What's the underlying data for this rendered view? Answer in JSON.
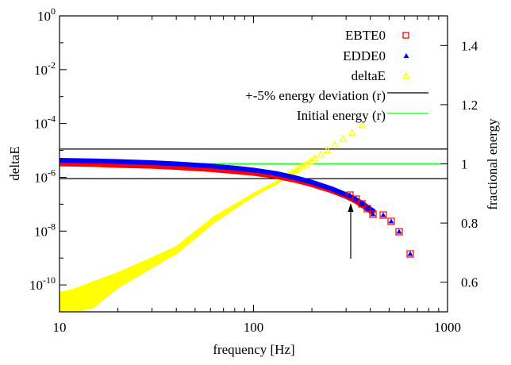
{
  "chart_data": {
    "type": "scatter",
    "title": "",
    "xlabel": "frequency [Hz]",
    "ylabel": "deltaE",
    "y2label": "fractional energy",
    "xscale": "log",
    "yscale": "log",
    "xlim": [
      10,
      1000
    ],
    "ylim": [
      1e-11,
      1
    ],
    "y2lim": [
      0.5,
      1.5
    ],
    "grid": false,
    "legend_position": "top-right",
    "x_ticks": [
      {
        "v": 10,
        "label": "10"
      },
      {
        "v": 100,
        "label": "100"
      },
      {
        "v": 1000,
        "label": "1000"
      }
    ],
    "y_ticks": [
      {
        "exp": 0,
        "label": "10",
        "sup": "0"
      },
      {
        "exp": -2,
        "label": "10",
        "sup": "-2"
      },
      {
        "exp": -4,
        "label": "10",
        "sup": "-4"
      },
      {
        "exp": -6,
        "label": "10",
        "sup": "-6"
      },
      {
        "exp": -8,
        "label": "10",
        "sup": "-8"
      },
      {
        "exp": -10,
        "label": "10",
        "sup": "-10"
      }
    ],
    "y2_ticks": [
      {
        "v": 0.6,
        "label": "0.6"
      },
      {
        "v": 0.8,
        "label": "0.8"
      },
      {
        "v": 1.0,
        "label": "1"
      },
      {
        "v": 1.2,
        "label": "1.2"
      },
      {
        "v": 1.4,
        "label": "1.4"
      }
    ],
    "series": [
      {
        "name": "EBTE0",
        "axis": "right",
        "marker": "open-square",
        "color": "#ff0000",
        "x": [
          10,
          15,
          20,
          30,
          40,
          60,
          80,
          100,
          130,
          160,
          200,
          250,
          300,
          330,
          360,
          390,
          420,
          450,
          480,
          520,
          570,
          640
        ],
        "values": [
          1.005,
          1.003,
          1.0,
          0.997,
          0.993,
          0.986,
          0.979,
          0.973,
          0.963,
          0.951,
          0.935,
          0.915,
          0.895,
          0.882,
          0.867,
          0.851,
          0.837,
          0.826,
          0.816,
          0.8,
          0.766,
          0.694
        ]
      },
      {
        "name": "EDDE0",
        "axis": "right",
        "marker": "filled-triangle",
        "color": "#0000ff",
        "x": [
          10,
          15,
          20,
          30,
          40,
          60,
          80,
          100,
          130,
          160,
          200,
          250,
          300,
          330,
          360,
          390,
          420,
          450,
          480,
          520,
          570,
          640
        ],
        "values": [
          1.012,
          1.01,
          1.008,
          1.004,
          1.0,
          0.993,
          0.986,
          0.979,
          0.968,
          0.955,
          0.938,
          0.917,
          0.896,
          0.883,
          0.868,
          0.852,
          0.838,
          0.827,
          0.817,
          0.801,
          0.767,
          0.695
        ]
      },
      {
        "name": "deltaE",
        "axis": "left",
        "marker": "open-triangle",
        "color": "#ffff00",
        "x": [
          10,
          12,
          15,
          20,
          30,
          40,
          63,
          80,
          100,
          130,
          150,
          170,
          207,
          240,
          280,
          310,
          364
        ],
        "values": [
          1e-11,
          2.5e-11,
          6e-11,
          1.6e-10,
          7e-10,
          2e-09,
          2.8e-08,
          8e-08,
          2.2e-07,
          6e-07,
          1.1e-06,
          2e-06,
          5.6e-06,
          1.2e-05,
          2.6e-05,
          4.5e-05,
          8.5e-05
        ],
        "band_low": [
          1e-11,
          1e-11,
          1.5e-11,
          8e-11,
          4.5e-10,
          1.5e-09,
          2.2e-08,
          7e-08,
          2e-07,
          5.5e-07,
          1e-06,
          1.9e-06,
          5.4e-06,
          1.2e-05,
          2.6e-05,
          4.5e-05,
          8.5e-05
        ],
        "band_high": [
          5e-11,
          7e-11,
          1.3e-10,
          2.8e-10,
          1e-09,
          2.6e-09,
          3.5e-08,
          9.5e-08,
          2.5e-07,
          6.6e-07,
          1.2e-06,
          2.1e-06,
          5.8e-06,
          1.2e-05,
          2.6e-05,
          4.5e-05,
          8.5e-05
        ]
      },
      {
        "name": "+-5% energy deviation (r)",
        "axis": "right",
        "type": "hline",
        "color": "#000000",
        "values": [
          0.95,
          1.05
        ]
      },
      {
        "name": "Initial energy (r)",
        "axis": "right",
        "type": "hline",
        "color": "#00ff00",
        "values": [
          1.0
        ]
      }
    ],
    "annotations": [
      {
        "type": "arrow",
        "x": 315,
        "from_y2": 0.64,
        "to_y2": 0.83,
        "color": "#000000"
      }
    ]
  },
  "legend": {
    "items": [
      {
        "label": "EBTE0"
      },
      {
        "label": "EDDE0"
      },
      {
        "label": "deltaE"
      },
      {
        "label": "+-5% energy deviation (r)"
      },
      {
        "label": "Initial energy (r)"
      }
    ]
  }
}
